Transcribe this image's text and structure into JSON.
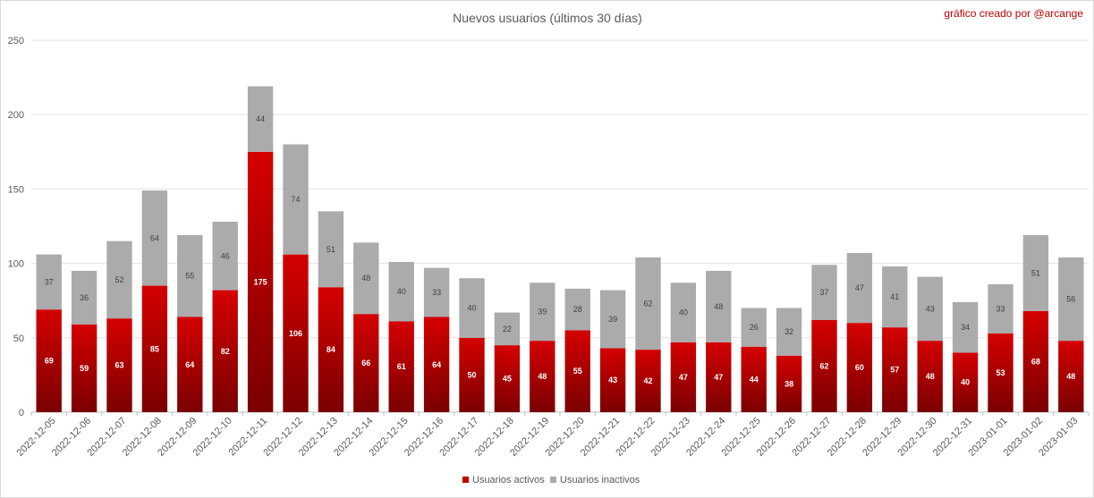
{
  "chart_data": {
    "type": "bar",
    "stacked": true,
    "title": "Nuevos usuarios (últimos 30 días)",
    "credit": "gráfico creado por @arcange",
    "categories": [
      "2022-12-05",
      "2022-12-06",
      "2022-12-07",
      "2022-12-08",
      "2022-12-09",
      "2022-12-10",
      "2022-12-11",
      "2022-12-12",
      "2022-12-13",
      "2022-12-14",
      "2022-12-15",
      "2022-12-16",
      "2022-12-17",
      "2022-12-18",
      "2022-12-19",
      "2022-12-20",
      "2022-12-21",
      "2022-12-22",
      "2022-12-23",
      "2022-12-24",
      "2022-12-25",
      "2022-12-26",
      "2022-12-27",
      "2022-12-28",
      "2022-12-29",
      "2022-12-30",
      "2022-12-31",
      "2023-01-01",
      "2023-01-02",
      "2023-01-03"
    ],
    "series": [
      {
        "name": "Usuarios activos",
        "color": "#c00000",
        "values": [
          69,
          59,
          63,
          85,
          64,
          82,
          175,
          106,
          84,
          66,
          61,
          64,
          50,
          45,
          48,
          55,
          43,
          42,
          47,
          47,
          44,
          38,
          62,
          60,
          57,
          48,
          40,
          53,
          68,
          48
        ]
      },
      {
        "name": "Usuarios inactivos",
        "color": "#ababab",
        "values": [
          37,
          36,
          52,
          64,
          55,
          46,
          44,
          74,
          51,
          48,
          40,
          33,
          40,
          22,
          39,
          28,
          39,
          62,
          40,
          48,
          26,
          32,
          37,
          47,
          41,
          43,
          34,
          33,
          51,
          56
        ]
      }
    ],
    "ylim": [
      0,
      250
    ],
    "yticks": [
      "0",
      "50",
      "100",
      "150",
      "200",
      "250"
    ],
    "grid": true,
    "legend": "bottom"
  }
}
